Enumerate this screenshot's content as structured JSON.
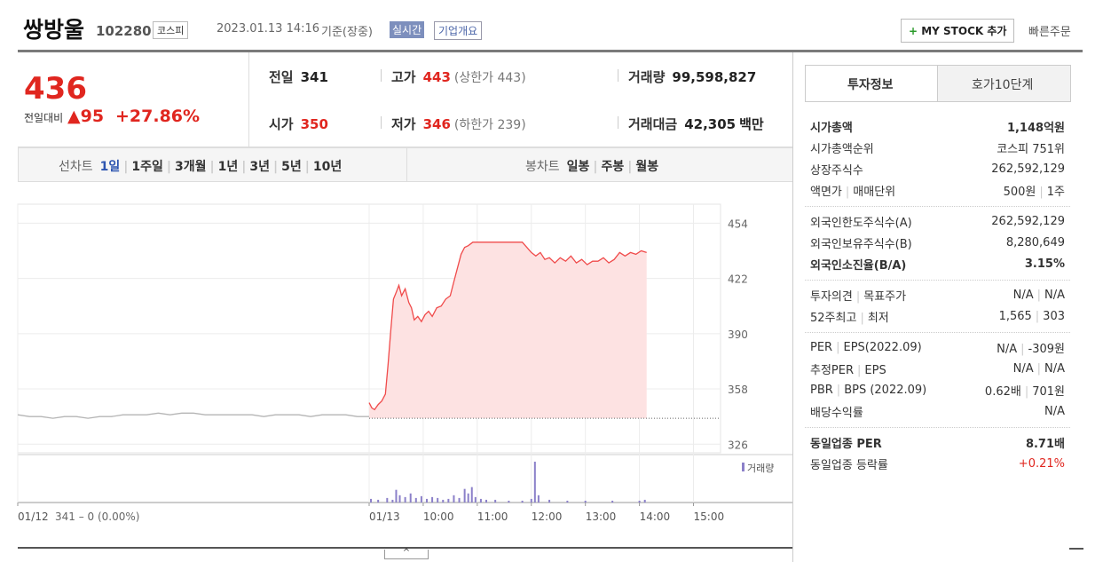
{
  "header": {
    "name": "쌍방울",
    "code": "102280",
    "market": "코스피",
    "datetime": "2023.01.13 14:16",
    "basis": "기준(장중)",
    "realtime": "실시간",
    "company_info": "기업개요",
    "my_stock": "MY STOCK 추가",
    "quick_order": "빠른주문"
  },
  "quote": {
    "price": "436",
    "change_label": "전일대비",
    "change": "95",
    "change_rate": "+27.86%"
  },
  "stats": [
    {
      "label": "전일",
      "value": "341"
    },
    {
      "label": "고가",
      "value": "443",
      "sub": "(상한가 443)"
    },
    {
      "label": "거래량",
      "value": "99,598,827"
    },
    {
      "label": "시가",
      "value": "350"
    },
    {
      "label": "저가",
      "value": "346",
      "sub": "(하한가 239)"
    },
    {
      "label": "거래대금",
      "value": "42,305",
      "unit": "백만"
    }
  ],
  "chart_tabs": {
    "line_label": "선차트",
    "line_periods": [
      "1일",
      "1주일",
      "3개월",
      "1년",
      "3년",
      "5년",
      "10년"
    ],
    "candle_label": "봉차트",
    "candle_periods": [
      "일봉",
      "주봉",
      "월봉"
    ]
  },
  "chart_data": {
    "type": "line",
    "prev_label": "341 – 0 (0.00%)",
    "reference_line": 341,
    "xlim": [
      0,
      780
    ],
    "ylim": [
      321,
      465
    ],
    "xticks": [
      {
        "value": 0,
        "label": "01/12"
      },
      {
        "value": 390,
        "label": "01/13"
      },
      {
        "value": 450,
        "label": "10:00"
      },
      {
        "value": 510,
        "label": "11:00"
      },
      {
        "value": 570,
        "label": "12:00"
      },
      {
        "value": 630,
        "label": "13:00"
      },
      {
        "value": 690,
        "label": "14:00"
      },
      {
        "value": 750,
        "label": "15:00"
      }
    ],
    "yticks": [
      454,
      422,
      390,
      358,
      326
    ],
    "series": [
      {
        "color": "#b5b5b5",
        "x": [
          0,
          13,
          26,
          39,
          52,
          65,
          78,
          91,
          104,
          117,
          130,
          143,
          156,
          169,
          182,
          195,
          208,
          221,
          234,
          247,
          260,
          273,
          286,
          299,
          312,
          325,
          338,
          351,
          364,
          377,
          390
        ],
        "values": [
          343,
          342,
          342,
          341,
          342,
          342,
          341,
          342,
          342,
          343,
          343,
          343,
          344,
          343,
          344,
          344,
          343,
          343,
          343,
          343,
          343,
          342,
          343,
          343,
          343,
          342,
          343,
          343,
          343,
          342,
          342
        ]
      },
      {
        "color": "#f04b4b",
        "fill": "#fde2e2",
        "x": [
          390,
          393,
          396,
          400,
          404,
          408,
          411,
          414,
          417,
          420,
          423,
          426,
          430,
          434,
          437,
          440,
          444,
          448,
          452,
          456,
          460,
          465,
          470,
          475,
          480,
          484,
          488,
          492,
          496,
          500,
          505,
          560,
          565,
          570,
          575,
          580,
          585,
          590,
          596,
          602,
          608,
          614,
          620,
          626,
          632,
          638,
          644,
          650,
          656,
          662,
          668,
          674,
          680,
          686,
          692,
          698
        ],
        "values": [
          350,
          347,
          346,
          349,
          351,
          355,
          372,
          392,
          410,
          414,
          418,
          412,
          416,
          408,
          405,
          398,
          400,
          397,
          401,
          403,
          400,
          405,
          406,
          410,
          412,
          420,
          428,
          436,
          440,
          441,
          443,
          443,
          440,
          437,
          435,
          437,
          433,
          434,
          431,
          434,
          432,
          435,
          431,
          433,
          430,
          432,
          432,
          434,
          431,
          433,
          437,
          435,
          437,
          436,
          438,
          437
        ]
      }
    ],
    "volume": {
      "name": "거래량",
      "color": "#8b80c9",
      "x": [
        392,
        400,
        410,
        416,
        420,
        424,
        430,
        436,
        442,
        448,
        454,
        460,
        466,
        472,
        478,
        484,
        490,
        496,
        500,
        504,
        508,
        514,
        520,
        530,
        545,
        560,
        570,
        574,
        578,
        590,
        610,
        630,
        660,
        690,
        696
      ],
      "values": [
        4,
        3,
        5,
        3,
        14,
        8,
        6,
        10,
        5,
        7,
        4,
        6,
        5,
        3,
        4,
        8,
        5,
        15,
        10,
        17,
        6,
        4,
        3,
        3,
        2,
        2,
        4,
        45,
        8,
        3,
        2,
        2,
        2,
        2,
        3
      ]
    }
  },
  "info_tabs": [
    "투자정보",
    "호가10단계"
  ],
  "info_groups": [
    [
      {
        "label": [
          "시가총액"
        ],
        "value": [
          "1,148억원"
        ],
        "emphasis": true
      },
      {
        "label": [
          "시가총액순위"
        ],
        "value": [
          "코스피 751위"
        ]
      },
      {
        "label": [
          "상장주식수"
        ],
        "value": [
          "262,592,129"
        ]
      },
      {
        "label": [
          "액면가",
          "매매단위"
        ],
        "value": [
          "500원",
          "1주"
        ]
      }
    ],
    [
      {
        "label": [
          "외국인한도주식수(A)"
        ],
        "value": [
          "262,592,129"
        ]
      },
      {
        "label": [
          "외국인보유주식수(B)"
        ],
        "value": [
          "8,280,649"
        ]
      },
      {
        "label": [
          "외국인소진율(B/A)"
        ],
        "value": [
          "3.15%"
        ],
        "emphasis": true
      }
    ],
    [
      {
        "label": [
          "투자의견",
          "목표주가"
        ],
        "value": [
          "N/A",
          "N/A"
        ]
      },
      {
        "label": [
          "52주최고",
          "최저"
        ],
        "value": [
          "1,565",
          "303"
        ]
      }
    ],
    [
      {
        "label": [
          "PER",
          "EPS(2022.09)"
        ],
        "value": [
          "N/A",
          "-309원"
        ]
      },
      {
        "label": [
          "추정PER",
          "EPS"
        ],
        "value": [
          "N/A",
          "N/A"
        ]
      },
      {
        "label": [
          "PBR",
          "BPS (2022.09)"
        ],
        "value": [
          "0.62배",
          "701원"
        ]
      },
      {
        "label": [
          "배당수익률"
        ],
        "value": [
          "N/A"
        ]
      }
    ],
    [
      {
        "label": [
          "동일업종 PER"
        ],
        "value": [
          "8.71배"
        ],
        "emphasis": true
      },
      {
        "label": [
          "동일업종 등락률"
        ],
        "value": [
          "+0.21%"
        ],
        "color": "#e0261f"
      }
    ]
  ]
}
